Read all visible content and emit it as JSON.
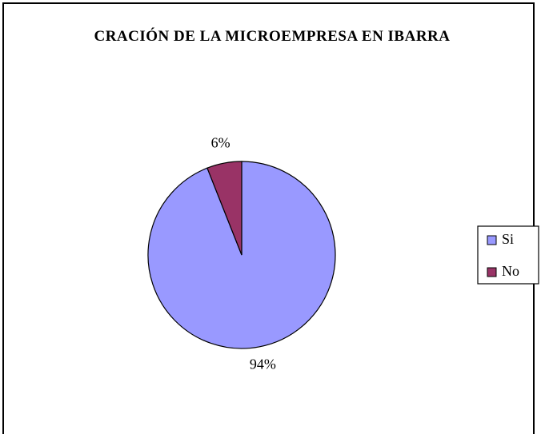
{
  "chart_data": {
    "type": "pie",
    "title": "CRACIÓN DE LA MICROEMPRESA EN IBARRA",
    "categories": [
      "Si",
      "No"
    ],
    "values": [
      94,
      6
    ],
    "value_labels": [
      "94%",
      "6%"
    ],
    "colors": [
      "#9999ff",
      "#993366"
    ],
    "legend": "right"
  }
}
